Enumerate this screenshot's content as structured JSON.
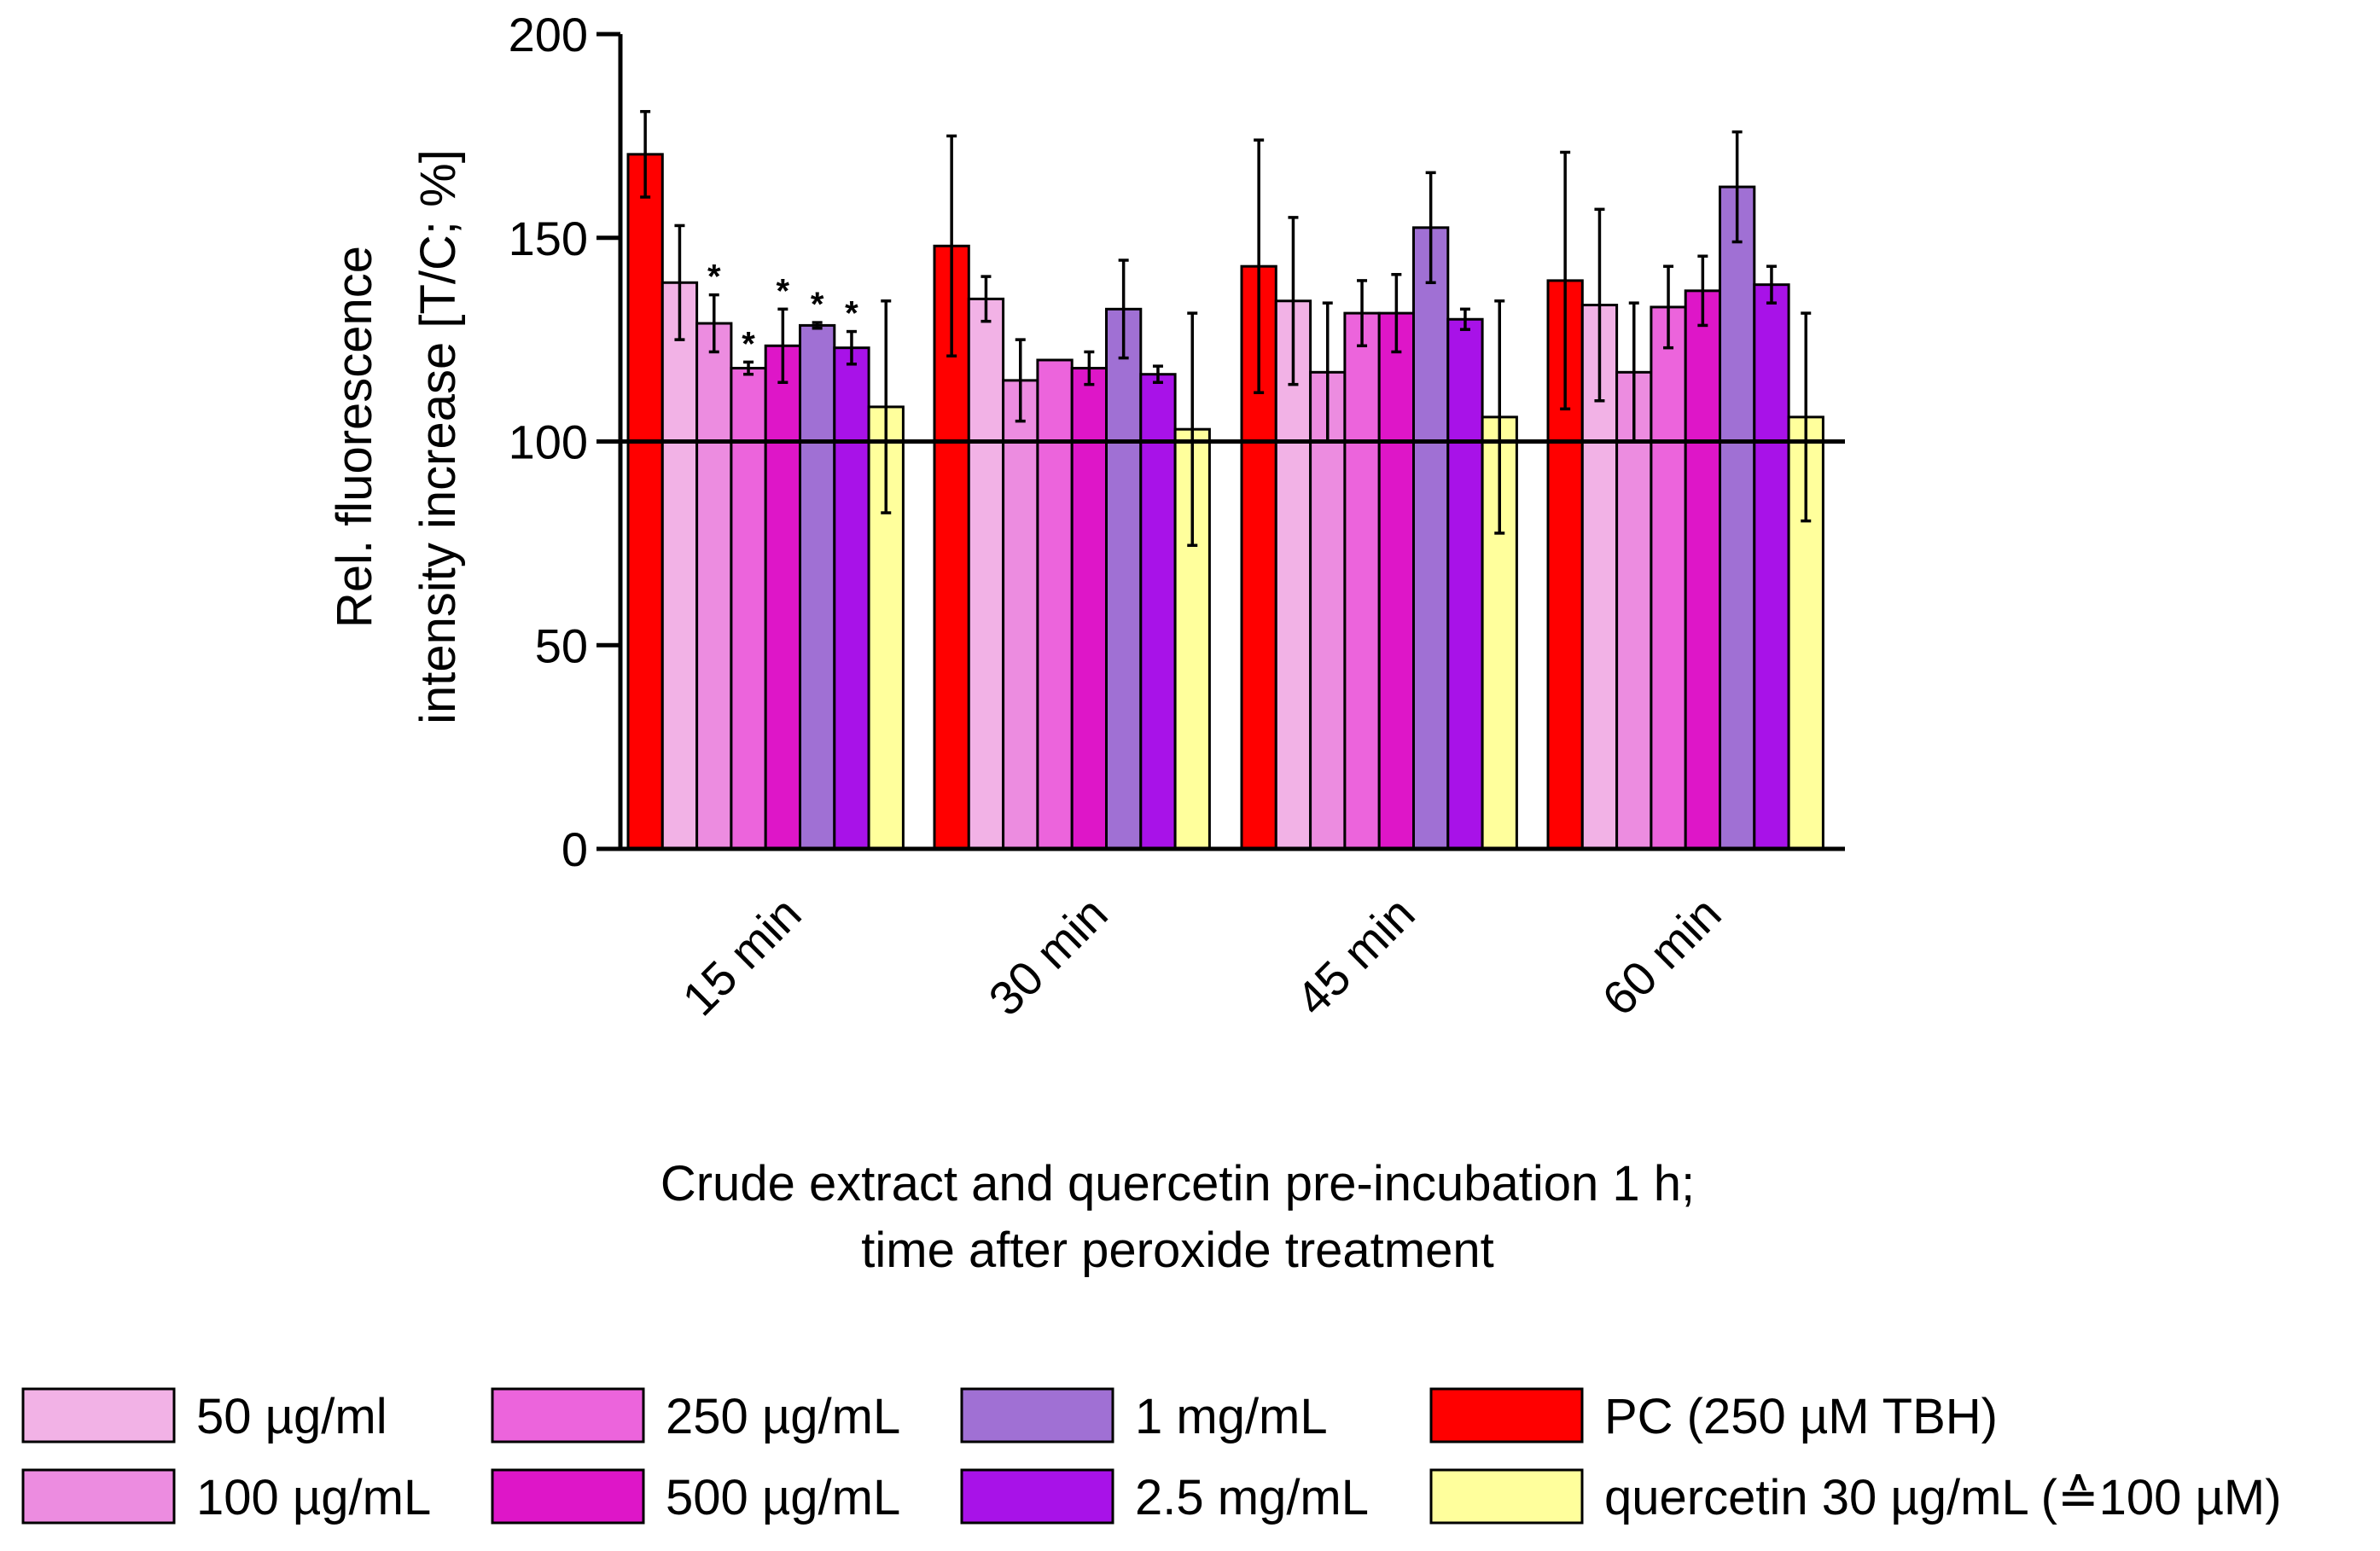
{
  "chart_data": {
    "type": "bar",
    "ylabel_line1": "Rel. fluorescence",
    "ylabel_line2": "intensity increase [T/C; %]",
    "xlabel_line1": "Crude extract and quercetin pre-incubation 1 h;",
    "xlabel_line2": "time after peroxide treatment",
    "ylim": [
      0,
      200
    ],
    "yticks": [
      0,
      50,
      100,
      150,
      200
    ],
    "reference_line": 100,
    "categories": [
      "15 min",
      "30 min",
      "45 min",
      "60 min"
    ],
    "series": [
      {
        "name": "PC (250 µM TBH)",
        "color": "#ff0000",
        "values": [
          170.5,
          148,
          143,
          139.5
        ],
        "errors": [
          10.5,
          27,
          31,
          31.5
        ],
        "significant": [
          false,
          false,
          false,
          false
        ]
      },
      {
        "name": "50 µg/ml",
        "color": "#f2b2e6",
        "values": [
          139,
          135,
          134.5,
          133.5
        ],
        "errors": [
          14,
          5.5,
          20.5,
          23.5
        ],
        "significant": [
          false,
          false,
          false,
          false
        ]
      },
      {
        "name": "100 µg/mL",
        "color": "#ec8ce0",
        "values": [
          129,
          115,
          117,
          117
        ],
        "errors": [
          7,
          10,
          17,
          17
        ],
        "significant": [
          true,
          false,
          false,
          false
        ]
      },
      {
        "name": "250 µg/mL",
        "color": "#ec64dc",
        "values": [
          118,
          120,
          131.5,
          133
        ],
        "errors": [
          1.5,
          0,
          8,
          10
        ],
        "significant": [
          true,
          false,
          false,
          false
        ]
      },
      {
        "name": "500 µg/mL",
        "color": "#de16c8",
        "values": [
          123.5,
          118,
          131.5,
          137
        ],
        "errors": [
          9,
          4,
          9.5,
          8.5
        ],
        "significant": [
          true,
          false,
          false,
          false
        ]
      },
      {
        "name": "1 mg/mL",
        "color": "#a070d4",
        "values": [
          128.5,
          132.5,
          152.5,
          162.5
        ],
        "errors": [
          0.7,
          12,
          13.5,
          13.5
        ],
        "significant": [
          true,
          false,
          false,
          false
        ]
      },
      {
        "name": "2.5 mg/mL",
        "color": "#a812e8",
        "values": [
          123,
          116.5,
          130,
          138.5
        ],
        "errors": [
          4,
          2,
          2.5,
          4.5
        ],
        "significant": [
          true,
          false,
          false,
          false
        ]
      },
      {
        "name": "quercetin 30 µg/mL (≙100 µM)",
        "color": "#ffff9c",
        "values": [
          108.5,
          103,
          106,
          106
        ],
        "errors": [
          26,
          28.5,
          28.5,
          25.5
        ],
        "significant": [
          false,
          false,
          false,
          false
        ]
      }
    ],
    "significance_marker": "*",
    "legend_position": "bottom"
  }
}
